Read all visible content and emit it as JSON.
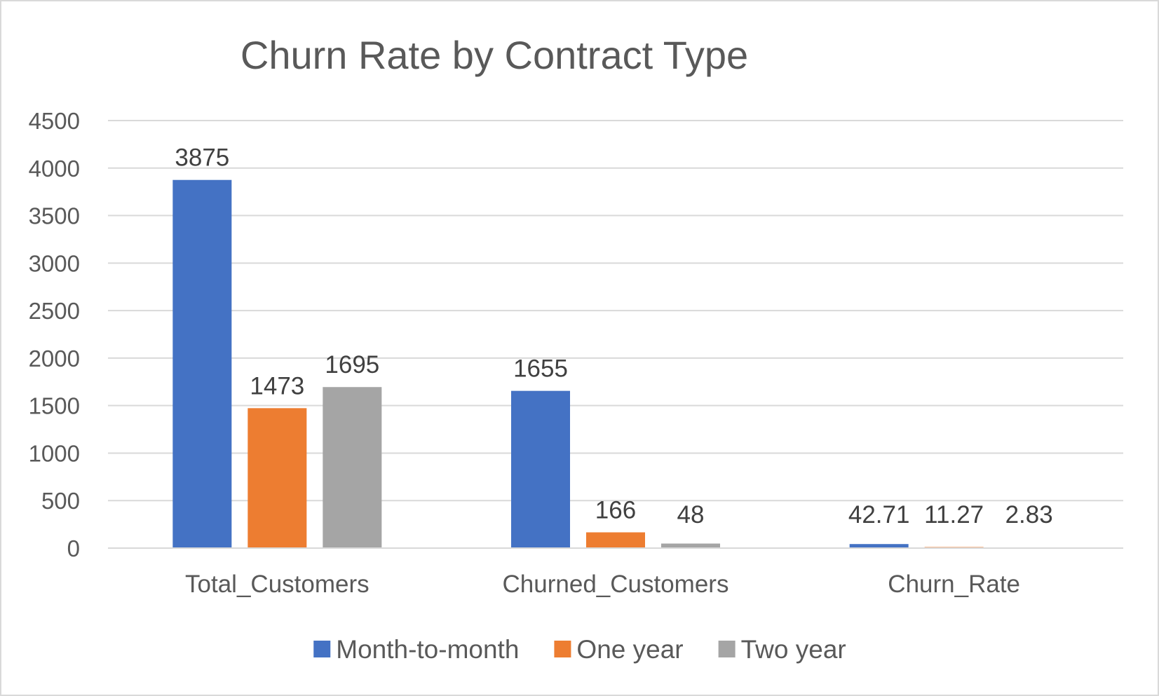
{
  "chart_data": {
    "type": "bar",
    "title": "Churn Rate by Contract Type",
    "xlabel": "",
    "ylabel": "",
    "categories": [
      "Total_Customers",
      "Churned_Customers",
      "Churn_Rate"
    ],
    "series": [
      {
        "name": "Month-to-month",
        "values": [
          3875,
          1655,
          42.71
        ],
        "labels": [
          "3875",
          "1655",
          "42.71"
        ],
        "color": "#4472C4"
      },
      {
        "name": "One year",
        "values": [
          1473,
          166,
          11.27
        ],
        "labels": [
          "1473",
          "166",
          "11.27"
        ],
        "color": "#ED7D31"
      },
      {
        "name": "Two year",
        "values": [
          1695,
          48,
          2.83
        ],
        "labels": [
          "1695",
          "48",
          "2.83"
        ],
        "color": "#A5A5A5"
      }
    ],
    "ylim": [
      0,
      4500
    ],
    "yticks": [
      0,
      500,
      1000,
      1500,
      2000,
      2500,
      3000,
      3500,
      4000,
      4500
    ],
    "grid": true,
    "legend_position": "bottom"
  }
}
